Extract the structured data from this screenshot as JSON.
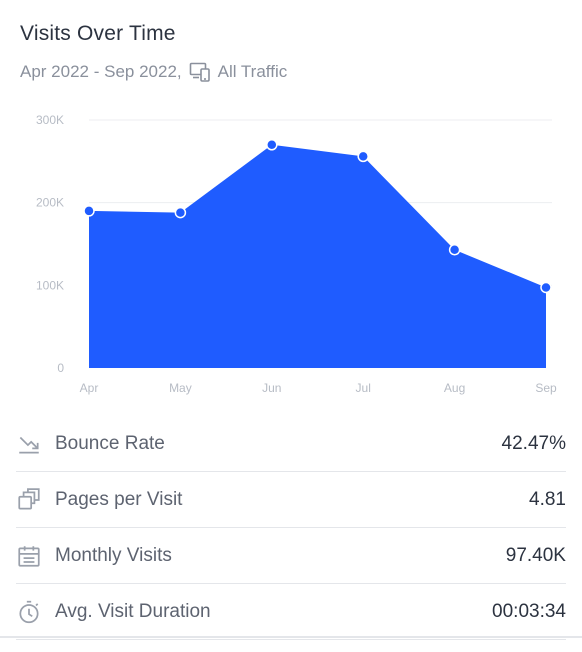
{
  "header": {
    "title": "Visits Over Time",
    "date_range": "Apr 2022 - Sep 2022,",
    "traffic_label": "All Traffic",
    "traffic_icon": "devices-icon"
  },
  "colors": {
    "area": "#1f5cff",
    "point_fill": "#1f5cff",
    "point_stroke": "#ffffff",
    "grid": "#eceef1",
    "tick": "#b7bcc5"
  },
  "chart_data": {
    "type": "area",
    "categories": [
      "Apr",
      "May",
      "Jun",
      "Jul",
      "Aug",
      "Sep"
    ],
    "values": [
      190000,
      188000,
      270000,
      256000,
      143000,
      97400
    ],
    "ylim": [
      0,
      300000
    ],
    "yticks": [
      0,
      100000,
      200000,
      300000
    ],
    "ytick_labels": [
      "0",
      "100K",
      "200K",
      "300K"
    ],
    "grid": true
  },
  "stats": [
    {
      "icon": "bounce-rate-icon",
      "label": "Bounce Rate",
      "value": "42.47%"
    },
    {
      "icon": "pages-icon",
      "label": "Pages per Visit",
      "value": "4.81"
    },
    {
      "icon": "calendar-icon",
      "label": "Monthly Visits",
      "value": "97.40K"
    },
    {
      "icon": "stopwatch-icon",
      "label": "Avg. Visit Duration",
      "value": "00:03:34"
    }
  ]
}
